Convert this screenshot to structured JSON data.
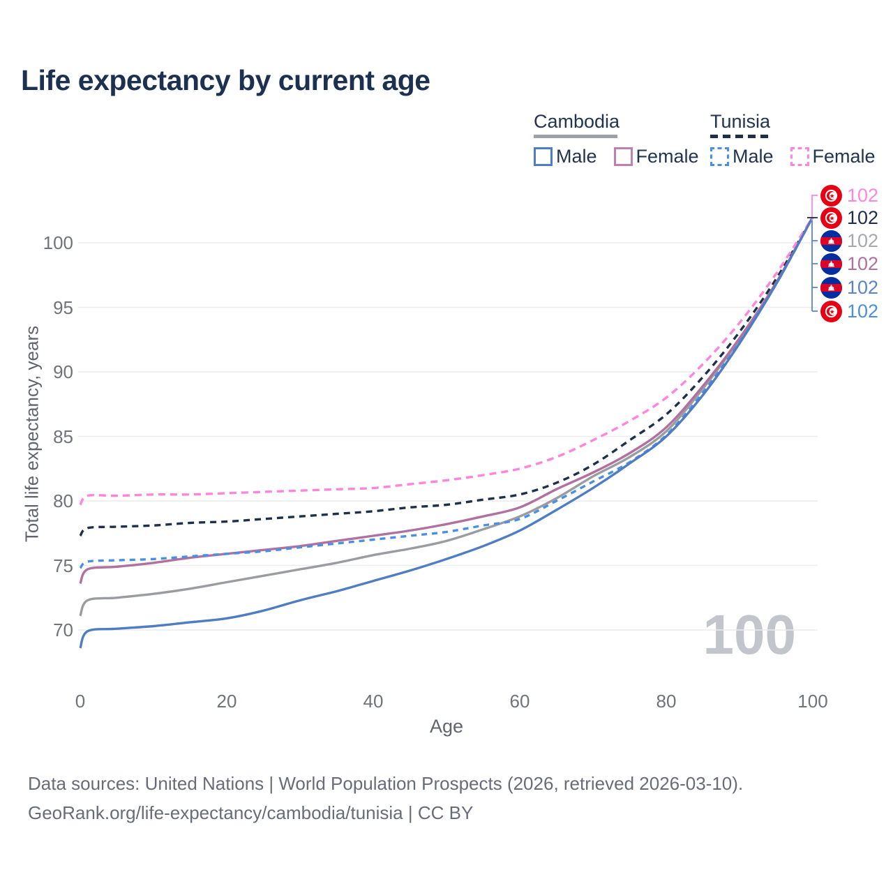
{
  "title": "Life expectancy by current age",
  "watermark_age": "100",
  "footer": {
    "line1": "Data sources: United Nations | World Population Prospects (2026, retrieved 2026-03-10).",
    "line2": "GeoRank.org/life-expectancy/cambodia/tunisia | CC BY"
  },
  "legend": {
    "groups": [
      {
        "name": "Cambodia",
        "line_style": "solid",
        "underline_color": "#9aa1a9",
        "items": [
          {
            "label": "Male",
            "color": "#4f7dc3"
          },
          {
            "label": "Female",
            "color": "#c07fb3"
          }
        ]
      },
      {
        "name": "Tunisia",
        "line_style": "dashed",
        "underline_color": "#1e3048",
        "items": [
          {
            "label": "Male",
            "color": "#4a90e2"
          },
          {
            "label": "Female",
            "color": "#ff85dc"
          }
        ]
      }
    ]
  },
  "end_labels": [
    {
      "series": "Tunisia Female",
      "flag": "tunisia",
      "value": "102",
      "color": "#ff85dc"
    },
    {
      "series": "Tunisia Both sexes",
      "flag": "tunisia",
      "value": "102",
      "color": "#1e3048"
    },
    {
      "series": "Cambodia Both sexes",
      "flag": "cambodia",
      "value": "102",
      "color": "#a7a9ad"
    },
    {
      "series": "Cambodia Female",
      "flag": "cambodia",
      "value": "102",
      "color": "#b0719f"
    },
    {
      "series": "Cambodia Male",
      "flag": "cambodia",
      "value": "102",
      "color": "#5b84c7"
    },
    {
      "series": "Tunisia Male",
      "flag": "tunisia",
      "value": "102",
      "color": "#4a90e2"
    }
  ],
  "chart_data": {
    "type": "line",
    "title": "Life expectancy by current age",
    "xlabel": "Age",
    "ylabel": "Total life expectancy, years",
    "xlim": [
      0,
      100
    ],
    "ylim": [
      67,
      103
    ],
    "xticks": [
      0,
      20,
      40,
      60,
      80,
      100
    ],
    "yticks": [
      70,
      75,
      80,
      85,
      90,
      95,
      100
    ],
    "grid": "horizontal",
    "legend_position": "top-right",
    "x": [
      0,
      1,
      5,
      10,
      15,
      20,
      25,
      30,
      35,
      40,
      45,
      50,
      55,
      60,
      65,
      70,
      75,
      80,
      85,
      90,
      95,
      100
    ],
    "series": [
      {
        "name": "Cambodia Both sexes",
        "country": "Cambodia",
        "sex": "Both sexes",
        "style": "solid",
        "color": "#9b9ca2",
        "end_value": 102,
        "values": [
          71.1,
          72.3,
          72.5,
          72.8,
          73.2,
          73.7,
          74.2,
          74.7,
          75.2,
          75.8,
          76.3,
          76.9,
          77.8,
          78.8,
          80.2,
          81.9,
          83.4,
          85.4,
          88.7,
          92.5,
          96.9,
          102
        ]
      },
      {
        "name": "Tunisia Both sexes",
        "country": "Tunisia",
        "sex": "Both sexes",
        "style": "dashed",
        "color": "#1e3048",
        "end_value": 102,
        "values": [
          77.3,
          77.9,
          78.0,
          78.1,
          78.3,
          78.4,
          78.6,
          78.8,
          79.0,
          79.2,
          79.5,
          79.7,
          80.1,
          80.5,
          81.4,
          82.8,
          84.7,
          86.7,
          89.6,
          93.1,
          97.2,
          102
        ]
      },
      {
        "name": "Cambodia Female",
        "country": "Cambodia",
        "sex": "Female",
        "style": "solid",
        "color": "#b0719f",
        "end_value": 102,
        "values": [
          73.6,
          74.7,
          74.9,
          75.2,
          75.6,
          75.9,
          76.2,
          76.5,
          76.9,
          77.3,
          77.7,
          78.2,
          78.8,
          79.5,
          80.9,
          82.2,
          83.7,
          85.7,
          88.9,
          92.6,
          96.9,
          102
        ]
      },
      {
        "name": "Tunisia Female",
        "country": "Tunisia",
        "sex": "Female",
        "style": "dashed",
        "color": "#ff85dc",
        "end_value": 102,
        "values": [
          79.7,
          80.4,
          80.4,
          80.5,
          80.5,
          80.6,
          80.7,
          80.8,
          80.9,
          81.0,
          81.3,
          81.6,
          82.0,
          82.5,
          83.4,
          84.7,
          86.2,
          88.0,
          90.6,
          93.8,
          97.6,
          102
        ]
      },
      {
        "name": "Tunisia Male",
        "country": "Tunisia",
        "sex": "Male",
        "style": "dashed",
        "color": "#4a90e2",
        "end_value": 102,
        "values": [
          74.8,
          75.3,
          75.4,
          75.5,
          75.7,
          75.9,
          76.1,
          76.4,
          76.7,
          77.0,
          77.3,
          77.6,
          78.1,
          78.6,
          80.0,
          81.5,
          83.0,
          85.1,
          88.4,
          92.3,
          96.8,
          102
        ]
      },
      {
        "name": "Cambodia Male",
        "country": "Cambodia",
        "sex": "Male",
        "style": "solid",
        "color": "#4f7dc3",
        "end_value": 102,
        "values": [
          68.6,
          69.9,
          70.1,
          70.3,
          70.6,
          70.9,
          71.5,
          72.3,
          73.0,
          73.8,
          74.6,
          75.5,
          76.5,
          77.7,
          79.3,
          81.0,
          82.9,
          85.0,
          88.2,
          92.2,
          96.8,
          102
        ]
      }
    ]
  }
}
